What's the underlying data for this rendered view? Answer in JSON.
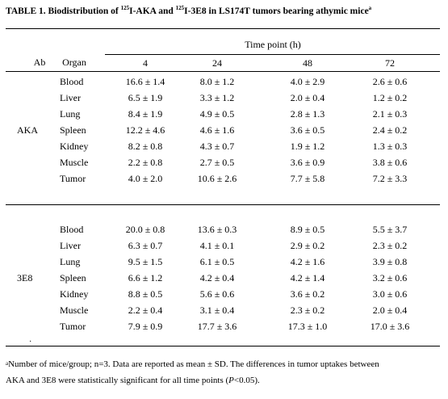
{
  "title": {
    "prefix": "TABLE 1. Biodistribution of ",
    "sup1": "125",
    "mid1": "I-AKA and ",
    "sup2": "125",
    "mid2": "I-3E8 in LS174T tumors bearing athymic mice",
    "sup3": "a"
  },
  "header": {
    "col_ab": "Ab",
    "col_organ": "Organ",
    "group_label": "Time point (h)",
    "times": [
      "4",
      "24",
      "48",
      "72"
    ]
  },
  "groups": [
    {
      "antibody": "AKA",
      "rows": [
        {
          "organ": "Blood",
          "values": [
            "16.6 ± 1.4",
            "8.0 ± 1.2",
            "4.0 ± 2.9",
            "2.6 ± 0.6"
          ]
        },
        {
          "organ": "Liver",
          "values": [
            "6.5 ± 1.9",
            "3.3 ± 1.2",
            "2.0 ± 0.4",
            "1.2 ± 0.2"
          ]
        },
        {
          "organ": "Lung",
          "values": [
            "8.4 ± 1.9",
            "4.9 ± 0.5",
            "2.8 ± 1.3",
            "2.1 ± 0.3"
          ]
        },
        {
          "organ": "Spleen",
          "values": [
            "12.2 ± 4.6",
            "4.6 ± 1.6",
            "3.6 ± 0.5",
            "2.4 ± 0.2"
          ]
        },
        {
          "organ": "Kidney",
          "values": [
            "8.2 ± 0.8",
            "4.3 ± 0.7",
            "1.9 ± 1.2",
            "1.3 ± 0.3"
          ]
        },
        {
          "organ": "Muscle",
          "values": [
            "2.2 ± 0.8",
            "2.7 ± 0.5",
            "3.6 ± 0.9",
            "3.8 ± 0.6"
          ]
        },
        {
          "organ": "Tumor",
          "values": [
            "4.0 ± 2.0",
            "10.6 ± 2.6",
            "7.7 ± 5.8",
            "7.2 ± 3.3"
          ]
        }
      ]
    },
    {
      "antibody": "3E8",
      "rows": [
        {
          "organ": "Blood",
          "values": [
            "20.0 ± 0.8",
            "13.6 ± 0.3",
            "8.9 ± 0.5",
            "5.5 ± 3.7"
          ]
        },
        {
          "organ": "Liver",
          "values": [
            "6.3 ± 0.7",
            "4.1 ± 0.1",
            "2.9 ± 0.2",
            "2.3 ± 0.2"
          ]
        },
        {
          "organ": "Lung",
          "values": [
            "9.5 ± 1.5",
            "6.1 ± 0.5",
            "4.2 ± 1.6",
            "3.9 ± 0.8"
          ]
        },
        {
          "organ": "Spleen",
          "values": [
            "6.6 ± 1.2",
            "4.2 ± 0.4",
            "4.2 ± 1.4",
            "3.2 ± 0.6"
          ]
        },
        {
          "organ": "Kidney",
          "values": [
            "8.8 ± 0.5",
            "5.6 ± 0.6",
            "3.6 ± 0.2",
            "3.0 ± 0.6"
          ]
        },
        {
          "organ": "Muscle",
          "values": [
            "2.2 ± 0.4",
            "3.1 ± 0.4",
            "2.3 ± 0.2",
            "2.0 ± 0.4"
          ]
        },
        {
          "organ": "Tumor",
          "values": [
            "7.9 ± 0.9",
            "17.7 ± 3.6",
            "17.3 ± 1.0",
            "17.0 ± 3.6"
          ]
        }
      ]
    }
  ],
  "footnote": {
    "sup": "a",
    "line1": "Number of mice/group; n=3. Data are reported as mean ± SD. The differences in tumor uptakes between",
    "line2_pre": "AKA and 3E8 were statistically significant for all time points (",
    "line2_p": "P",
    "line2_post": "<0.05)."
  }
}
